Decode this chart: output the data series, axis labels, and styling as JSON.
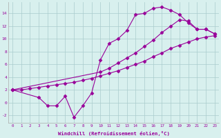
{
  "line1_x": [
    0,
    1,
    2,
    3,
    4,
    5,
    6,
    7,
    8,
    9,
    10,
    11,
    12,
    13,
    14,
    15,
    16,
    17,
    18,
    19,
    20,
    21,
    22,
    23
  ],
  "line1_y": [
    2.0,
    2.0,
    2.2,
    2.4,
    2.6,
    2.8,
    3.0,
    3.2,
    3.5,
    3.8,
    4.2,
    4.6,
    5.0,
    5.5,
    6.0,
    6.5,
    7.2,
    7.8,
    8.5,
    9.0,
    9.5,
    10.0,
    10.3,
    10.5
  ],
  "line2_x": [
    0,
    3,
    4,
    5,
    6,
    7,
    8,
    9,
    10,
    11,
    12,
    13,
    14,
    15,
    16,
    17,
    18,
    19,
    20,
    21,
    22,
    23
  ],
  "line2_y": [
    2.0,
    0.8,
    -0.5,
    -0.5,
    1.0,
    -2.3,
    -0.5,
    1.5,
    6.7,
    9.3,
    10.0,
    11.3,
    13.8,
    14.0,
    14.8,
    15.0,
    14.5,
    13.8,
    12.5,
    11.5,
    11.5,
    10.8
  ],
  "line3_x": [
    0,
    10,
    11,
    12,
    13,
    14,
    15,
    16,
    17,
    18,
    19,
    20,
    21,
    22,
    23
  ],
  "line3_y": [
    2.0,
    4.8,
    5.4,
    6.2,
    7.0,
    7.8,
    8.8,
    9.8,
    11.0,
    12.0,
    13.0,
    12.8,
    11.5,
    11.5,
    10.8
  ],
  "line_color": "#990099",
  "marker": "D",
  "marker_size": 2.5,
  "bg_color": "#d8f0ee",
  "grid_color": "#aacccc",
  "xlabel": "Windchill (Refroidissement éolien,°C)",
  "xlim": [
    -0.5,
    23.5
  ],
  "ylim": [
    -3.2,
    15.8
  ],
  "yticks": [
    -2,
    0,
    2,
    4,
    6,
    8,
    10,
    12,
    14
  ],
  "xticks": [
    0,
    1,
    2,
    3,
    4,
    5,
    6,
    7,
    8,
    9,
    10,
    11,
    12,
    13,
    14,
    15,
    16,
    17,
    18,
    19,
    20,
    21,
    22,
    23
  ]
}
